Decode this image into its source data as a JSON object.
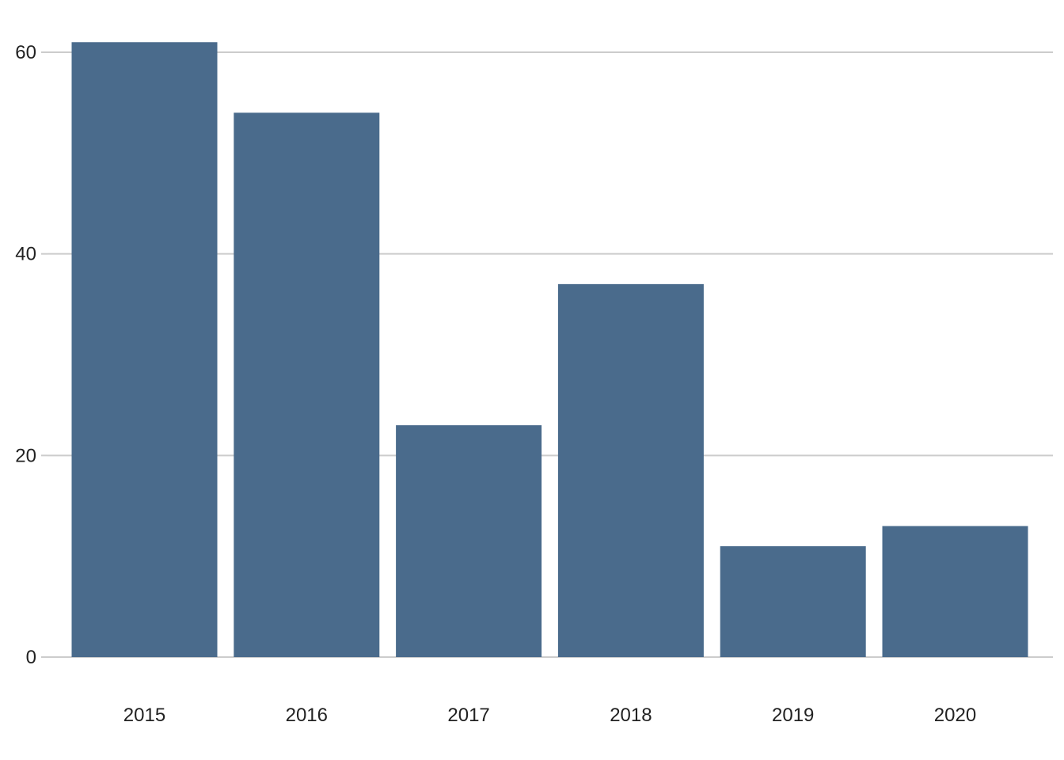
{
  "chart_data": {
    "type": "bar",
    "categories": [
      "2015",
      "2016",
      "2017",
      "2018",
      "2019",
      "2020"
    ],
    "values": [
      61,
      54,
      23,
      37,
      11,
      13
    ],
    "title": "",
    "xlabel": "",
    "ylabel": "",
    "ylim": [
      0,
      62
    ],
    "yticks": [
      0,
      20,
      40,
      60
    ],
    "grid": "horizontal",
    "legend": "none",
    "bar_color": "#4a6b8c",
    "grid_color": "#cccccc"
  }
}
